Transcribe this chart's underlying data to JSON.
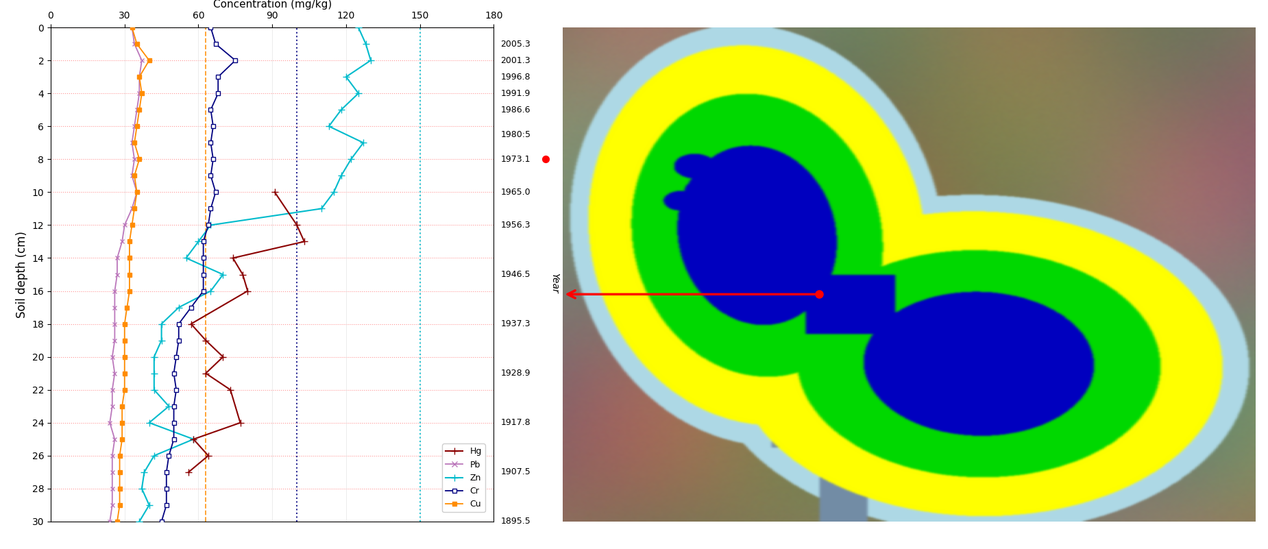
{
  "depth": [
    0,
    1,
    2,
    3,
    4,
    5,
    6,
    7,
    8,
    9,
    10,
    11,
    12,
    13,
    14,
    15,
    16,
    17,
    18,
    19,
    20,
    21,
    22,
    23,
    24,
    25,
    26,
    27,
    28,
    29,
    30
  ],
  "Hg": [
    null,
    null,
    null,
    null,
    null,
    null,
    null,
    null,
    null,
    null,
    91,
    null,
    100,
    103,
    74,
    78,
    80,
    null,
    57,
    63,
    70,
    63,
    73,
    null,
    77,
    58,
    64,
    56,
    null,
    null,
    null
  ],
  "Pb": [
    33,
    34,
    37,
    36,
    36,
    35,
    34,
    33,
    34,
    33,
    35,
    33,
    30,
    29,
    27,
    27,
    26,
    26,
    26,
    26,
    25,
    26,
    25,
    25,
    24,
    26,
    25,
    25,
    25,
    25,
    24
  ],
  "Zn": [
    125,
    128,
    130,
    120,
    125,
    118,
    113,
    127,
    122,
    118,
    115,
    110,
    65,
    60,
    55,
    70,
    65,
    52,
    45,
    45,
    42,
    42,
    42,
    48,
    40,
    58,
    42,
    38,
    37,
    40,
    36
  ],
  "Cr": [
    65,
    67,
    75,
    68,
    68,
    65,
    66,
    65,
    66,
    65,
    67,
    65,
    64,
    62,
    62,
    62,
    62,
    57,
    52,
    52,
    51,
    50,
    51,
    50,
    50,
    50,
    48,
    47,
    47,
    47,
    45
  ],
  "Cu": [
    33,
    35,
    40,
    36,
    37,
    36,
    35,
    34,
    36,
    34,
    35,
    34,
    33,
    32,
    32,
    32,
    32,
    31,
    30,
    30,
    30,
    30,
    30,
    29,
    29,
    29,
    28,
    28,
    28,
    28,
    27
  ],
  "year_ticks": [
    "2005.3",
    "2001.3",
    "1996.8",
    "1991.9",
    "1986.6",
    "1980:5",
    "1973.1",
    "1965.0",
    "1956.3",
    "1946.5",
    "1937.3",
    "1928.9",
    "1917.8",
    "1907.5",
    "1895.5"
  ],
  "year_depths": [
    1,
    2,
    3,
    4,
    5,
    6.5,
    8,
    10,
    12,
    15,
    18,
    21,
    24,
    27,
    30
  ],
  "xlim": [
    0,
    180
  ],
  "ylim": [
    30,
    0
  ],
  "xlabel": "Concentration (mg/kg)",
  "ylabel": "Soil depth (cm)",
  "Hg_color": "#8B0000",
  "Pb_color": "#BB77BB",
  "Zn_color": "#00BBCC",
  "Cr_color": "#000080",
  "Cu_color": "#FF8C00",
  "vline_Cu": 63,
  "vline_Cr": 100,
  "vline_Zn": 150,
  "arrow_depth": 8.0
}
